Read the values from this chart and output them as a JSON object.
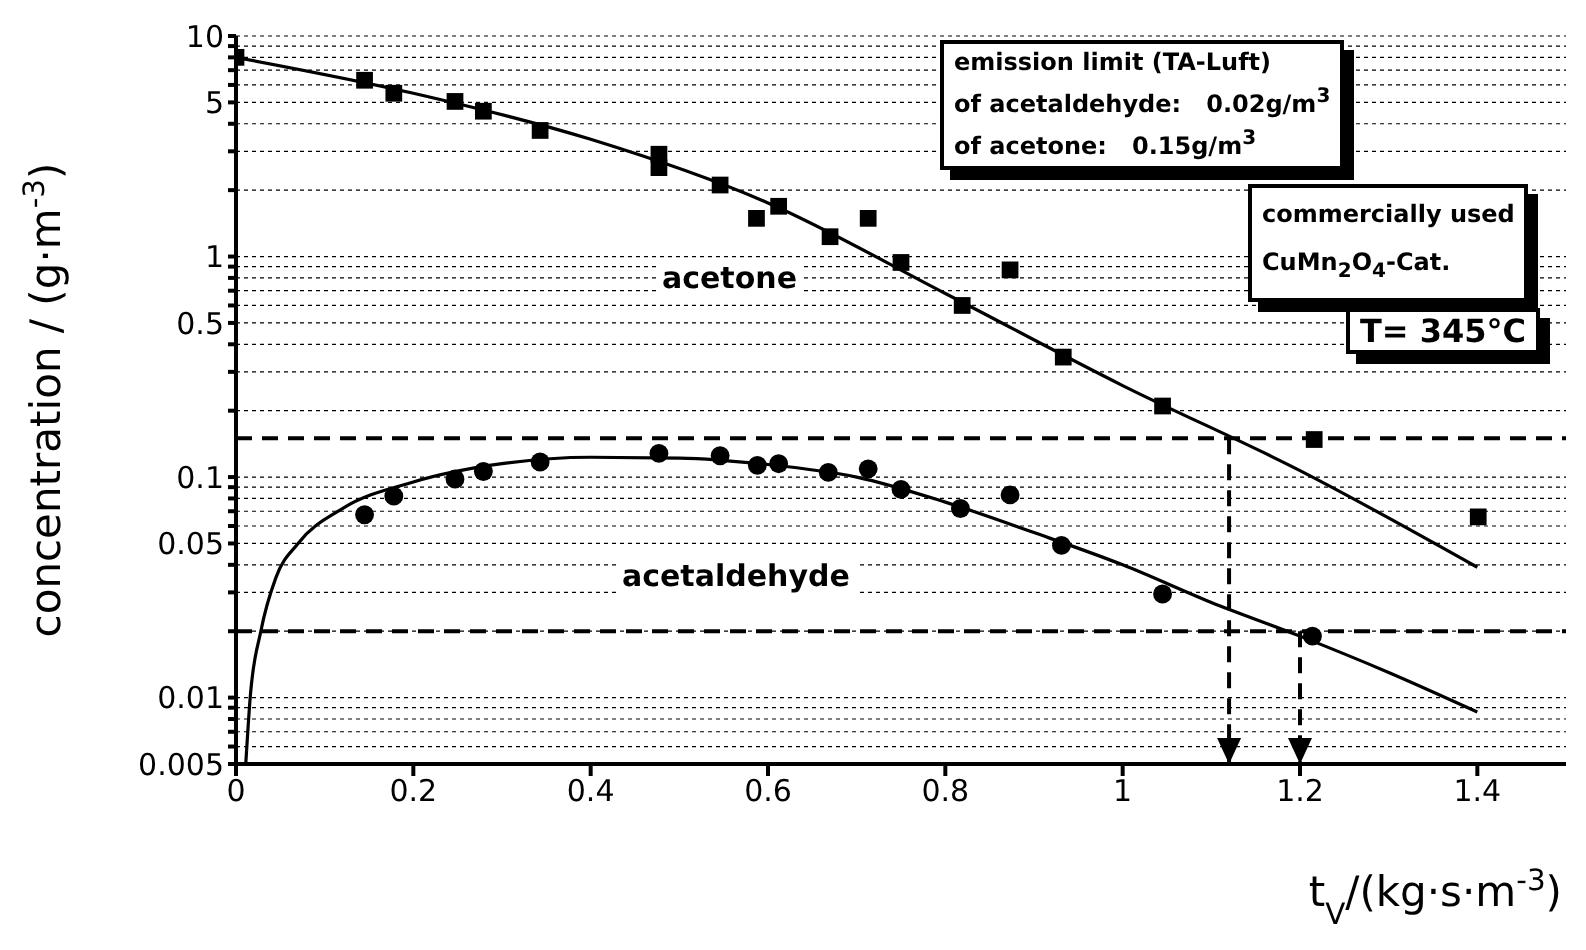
{
  "chart_data": {
    "type": "scatter",
    "xlabel": "t$_{V}$/(kg·s·m$^{-3}$)",
    "ylabel": "concentration / (g·m$^{-3}$)",
    "log": "y",
    "xlim": [
      0,
      1.5
    ],
    "ylim": [
      0.005,
      10
    ],
    "xticks": [
      0,
      0.2,
      0.4,
      0.6,
      0.8,
      1,
      1.2,
      1.4
    ],
    "yticks": [
      0.005,
      {
        "value": 0.006,
        "label": null
      },
      {
        "value": 0.007,
        "label": null
      },
      {
        "value": 0.008,
        "label": null
      },
      {
        "value": 0.009,
        "label": null
      },
      0.01,
      {
        "value": 0.02,
        "label": null
      },
      {
        "value": 0.03,
        "label": null
      },
      {
        "value": 0.04,
        "label": null
      },
      0.05,
      {
        "value": 0.06,
        "label": null
      },
      {
        "value": 0.07,
        "label": null
      },
      {
        "value": 0.08,
        "label": null
      },
      {
        "value": 0.09,
        "label": null
      },
      0.1,
      {
        "value": 0.2,
        "label": null
      },
      {
        "value": 0.3,
        "label": null
      },
      {
        "value": 0.4,
        "label": null
      },
      0.5,
      {
        "value": 0.6,
        "label": null
      },
      {
        "value": 0.7,
        "label": null
      },
      {
        "value": 0.8,
        "label": null
      },
      {
        "value": 0.9,
        "label": null
      },
      1,
      {
        "value": 2,
        "label": null
      },
      {
        "value": 3,
        "label": null
      },
      {
        "value": 4,
        "label": null
      },
      5,
      {
        "value": 6,
        "label": null
      },
      {
        "value": 7,
        "label": null
      },
      {
        "value": 8,
        "label": null
      },
      {
        "value": 9,
        "label": null
      },
      10
    ],
    "grid": "y",
    "legend": false,
    "series": [
      {
        "name": "acetone",
        "type": "scatter",
        "marker": "square",
        "color": "#000000",
        "x": [
          0,
          0.145,
          0.178,
          0.247,
          0.279,
          0.343,
          0.477,
          0.477,
          0.546,
          0.587,
          0.612,
          0.67,
          0.713,
          0.75,
          0.819,
          0.873,
          0.933,
          1.045,
          1.216,
          1.401
        ],
        "values": [
          8,
          6.3,
          5.5,
          5.05,
          4.56,
          3.73,
          2.91,
          2.53,
          2.11,
          1.49,
          1.69,
          1.23,
          1.49,
          0.94,
          0.6,
          0.87,
          0.35,
          0.21,
          0.148,
          0.066
        ]
      },
      {
        "type": "line",
        "marker": "none",
        "color": "#000000",
        "x": [
          0,
          0.2,
          0.4,
          0.6,
          0.8,
          1.0,
          1.2,
          1.4
        ],
        "values": [
          8,
          5.5,
          3.4,
          1.75,
          0.68,
          0.26,
          0.107,
          0.039
        ]
      },
      {
        "name": "acetaldehyde",
        "type": "scatter",
        "marker": "circle",
        "color": "#000000",
        "x": [
          0.145,
          0.178,
          0.247,
          0.279,
          0.343,
          0.477,
          0.546,
          0.588,
          0.612,
          0.668,
          0.713,
          0.75,
          0.817,
          0.873,
          0.931,
          1.045,
          1.214
        ],
        "values": [
          0.0675,
          0.082,
          0.098,
          0.106,
          0.117,
          0.128,
          0.125,
          0.113,
          0.115,
          0.105,
          0.109,
          0.088,
          0.072,
          0.083,
          0.049,
          0.0295,
          0.019
        ]
      },
      {
        "type": "line",
        "marker": "none",
        "color": "#000000",
        "x": [
          0.011,
          0.016,
          0.028,
          0.045,
          0.07,
          0.12,
          0.2,
          0.3,
          0.4,
          0.5,
          0.6,
          0.7,
          0.8,
          0.9,
          1.0,
          1.1,
          1.2,
          1.3,
          1.4
        ],
        "values": [
          0.005,
          0.01,
          0.02,
          0.035,
          0.05,
          0.072,
          0.095,
          0.115,
          0.123,
          0.122,
          0.114,
          0.1,
          0.077,
          0.056,
          0.04,
          0.027,
          0.019,
          0.013,
          0.0086
        ]
      }
    ],
    "ref_lines": [
      {
        "axis": "y",
        "value": 0.15,
        "line_style": "dashed",
        "color": "#000000"
      },
      {
        "axis": "y",
        "value": 0.02,
        "line_style": "dashed",
        "color": "#000000"
      },
      {
        "axis": "x",
        "value": 1.12,
        "line_style": "dashed",
        "color": "#000000"
      },
      {
        "axis": "x",
        "value": 1.2,
        "line_style": "dashed",
        "color": "#000000"
      }
    ],
    "annotations": [
      "emission limit (TA-Luft)",
      "of acetaldehyde:   0.02g/m$^{3}$",
      "of acetone:   0.15g/m$^{3}$",
      "commercially used",
      "CuMn$_{2}$O$_{4}$-Cat.",
      "T= 345°C"
    ]
  }
}
